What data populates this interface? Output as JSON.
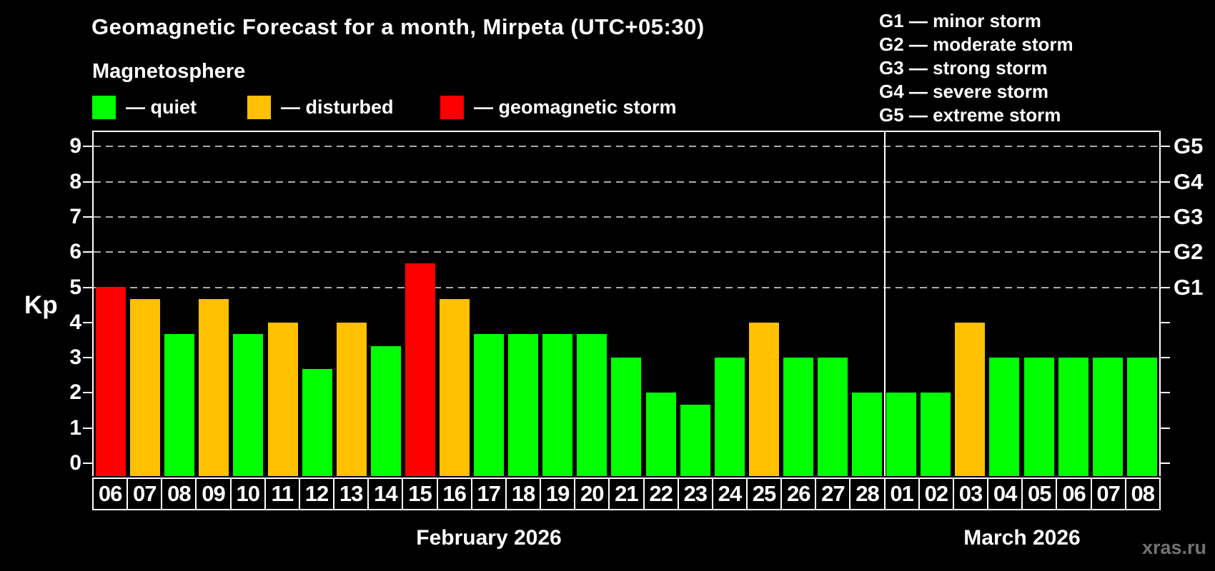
{
  "header": {
    "title": "Geomagnetic Forecast for a month, Mirpeta (UTC+05:30)",
    "subtitle": "Magnetosphere",
    "legend": [
      {
        "status": "quiet",
        "label": "— quiet"
      },
      {
        "status": "disturbed",
        "label": "— disturbed"
      },
      {
        "status": "storm",
        "label": "— geomagnetic storm"
      }
    ],
    "g_legend": [
      "G1 — minor storm",
      "G2 — moderate storm",
      "G3 — strong storm",
      "G4 — severe storm",
      "G5 — extreme storm"
    ]
  },
  "colors": {
    "quiet": "#00ff00",
    "disturbed": "#ffc000",
    "storm": "#ff0000",
    "grid": "#aaaaaa",
    "frame": "#ffffff",
    "background": "#000000",
    "watermark": "#737373"
  },
  "watermark": "xras.ru",
  "chart_data": {
    "type": "bar",
    "title": "Geomagnetic Forecast for a month, Mirpeta (UTC+05:30)",
    "ylabel": "Kp",
    "ylim": [
      0,
      9.4
    ],
    "y_ticks": [
      0,
      1,
      2,
      3,
      4,
      5,
      6,
      7,
      8,
      9
    ],
    "grid": "dashed horizontal at Kp 5-9 only",
    "legend_position": "top",
    "right_scale": [
      {
        "kp": 5,
        "label": "G1"
      },
      {
        "kp": 6,
        "label": "G2"
      },
      {
        "kp": 7,
        "label": "G3"
      },
      {
        "kp": 8,
        "label": "G4"
      },
      {
        "kp": 9,
        "label": "G5"
      }
    ],
    "gridlines_kp": [
      5,
      6,
      7,
      8,
      9
    ],
    "months": [
      {
        "label": "February 2026",
        "start_index": 0,
        "num_days": 23
      },
      {
        "label": "March 2026",
        "start_index": 23,
        "num_days": 8
      }
    ],
    "bars": [
      {
        "day": "06",
        "kp": 5.0,
        "status": "storm"
      },
      {
        "day": "07",
        "kp": 4.67,
        "status": "disturbed"
      },
      {
        "day": "08",
        "kp": 3.67,
        "status": "quiet"
      },
      {
        "day": "09",
        "kp": 4.67,
        "status": "disturbed"
      },
      {
        "day": "10",
        "kp": 3.67,
        "status": "quiet"
      },
      {
        "day": "11",
        "kp": 4.0,
        "status": "disturbed"
      },
      {
        "day": "12",
        "kp": 2.67,
        "status": "quiet"
      },
      {
        "day": "13",
        "kp": 4.0,
        "status": "disturbed"
      },
      {
        "day": "14",
        "kp": 3.33,
        "status": "quiet"
      },
      {
        "day": "15",
        "kp": 5.67,
        "status": "storm"
      },
      {
        "day": "16",
        "kp": 4.67,
        "status": "disturbed"
      },
      {
        "day": "17",
        "kp": 3.67,
        "status": "quiet"
      },
      {
        "day": "18",
        "kp": 3.67,
        "status": "quiet"
      },
      {
        "day": "19",
        "kp": 3.67,
        "status": "quiet"
      },
      {
        "day": "20",
        "kp": 3.67,
        "status": "quiet"
      },
      {
        "day": "21",
        "kp": 3.0,
        "status": "quiet"
      },
      {
        "day": "22",
        "kp": 2.0,
        "status": "quiet"
      },
      {
        "day": "23",
        "kp": 1.67,
        "status": "quiet"
      },
      {
        "day": "24",
        "kp": 3.0,
        "status": "quiet"
      },
      {
        "day": "25",
        "kp": 4.0,
        "status": "disturbed"
      },
      {
        "day": "26",
        "kp": 3.0,
        "status": "quiet"
      },
      {
        "day": "27",
        "kp": 3.0,
        "status": "quiet"
      },
      {
        "day": "28",
        "kp": 2.0,
        "status": "quiet"
      },
      {
        "day": "01",
        "kp": 2.0,
        "status": "quiet"
      },
      {
        "day": "02",
        "kp": 2.0,
        "status": "quiet"
      },
      {
        "day": "03",
        "kp": 4.0,
        "status": "disturbed"
      },
      {
        "day": "04",
        "kp": 3.0,
        "status": "quiet"
      },
      {
        "day": "05",
        "kp": 3.0,
        "status": "quiet"
      },
      {
        "day": "06",
        "kp": 3.0,
        "status": "quiet"
      },
      {
        "day": "07",
        "kp": 3.0,
        "status": "quiet"
      },
      {
        "day": "08",
        "kp": 3.0,
        "status": "quiet"
      }
    ]
  }
}
